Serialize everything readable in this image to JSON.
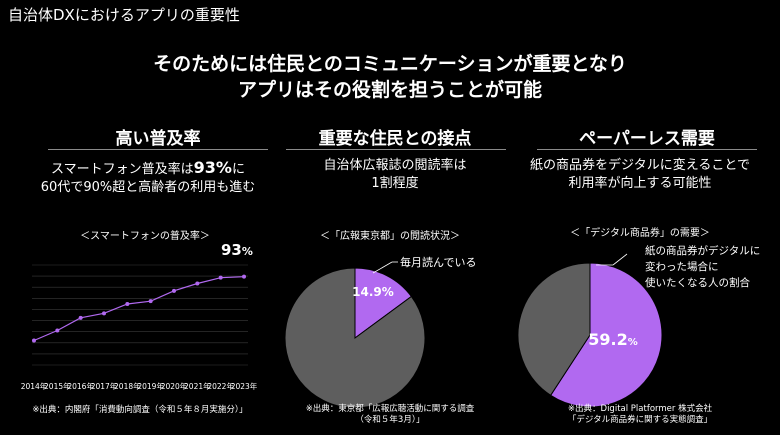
{
  "page_title": "自治体DXにおけるアプリの重要性",
  "headline": {
    "line1": "そのためには住民とのコミュニケーションが重要となり",
    "line2": "アプリはその役割を担うことが可能"
  },
  "columns": [
    {
      "title": "高い普及率",
      "desc_pre": "スマートフォン普及率は",
      "desc_big": "93%",
      "desc_post": "に",
      "desc_line2": "60代で90%超と高齢者の利用も進む",
      "subtitle": "＜スマートフォンの普及率＞",
      "value_label_num": "93",
      "value_label_unit": "%",
      "source": "※出典：内閣府「消費動向調査（令和５年８月実施分）」"
    },
    {
      "title": "重要な住民との接点",
      "desc_line1": "自治体広報誌の閲読率は",
      "desc_line2": "1割程度",
      "subtitle": "＜「広報東京都」の閲読状況＞",
      "callout": "毎月読んでいる",
      "slice_label": "14.9%",
      "source_line1": "※出典：東京都「広報広聴活動に関する調査",
      "source_line2": "（令和５年3月）」"
    },
    {
      "title": "ペーパーレス需要",
      "desc_line1": "紙の商品券をデジタルに変えることで",
      "desc_line2": "利用率が向上する可能性",
      "subtitle": "＜「デジタル商品券」の需要＞",
      "callout_line1": "紙の商品券がデジタルに",
      "callout_line2": "変わった場合に",
      "callout_line3": "使いたくなる人の割合",
      "slice_label_num": "59.2",
      "slice_label_unit": "%",
      "source_line1": "※出典：Digital Platformer 株式会社",
      "source_line2": "「デジタル商品券に関する実態調査」"
    }
  ],
  "chart_data": [
    {
      "type": "line",
      "x": [
        "2014年",
        "2015年",
        "2016年",
        "2017年",
        "2018年",
        "2019年",
        "2020年",
        "2021年",
        "2022年",
        "2023年"
      ],
      "series": [
        {
          "values": [
            54.7,
            60.7,
            68.3,
            71.0,
            76.6,
            78.3,
            84.5,
            88.9,
            92.4,
            93.0
          ]
        }
      ],
      "ylim": [
        40,
        100
      ],
      "grid": true,
      "color": "#b169f0"
    },
    {
      "type": "pie",
      "slices": [
        {
          "label": "毎月読んでいる",
          "value": 14.9,
          "color": "#b169f0"
        },
        {
          "value": 85.1,
          "color": "#5e5e5e"
        }
      ]
    },
    {
      "type": "pie",
      "slices": [
        {
          "value": 59.2,
          "color": "#b169f0"
        },
        {
          "value": 40.8,
          "color": "#5e5e5e"
        }
      ]
    }
  ]
}
